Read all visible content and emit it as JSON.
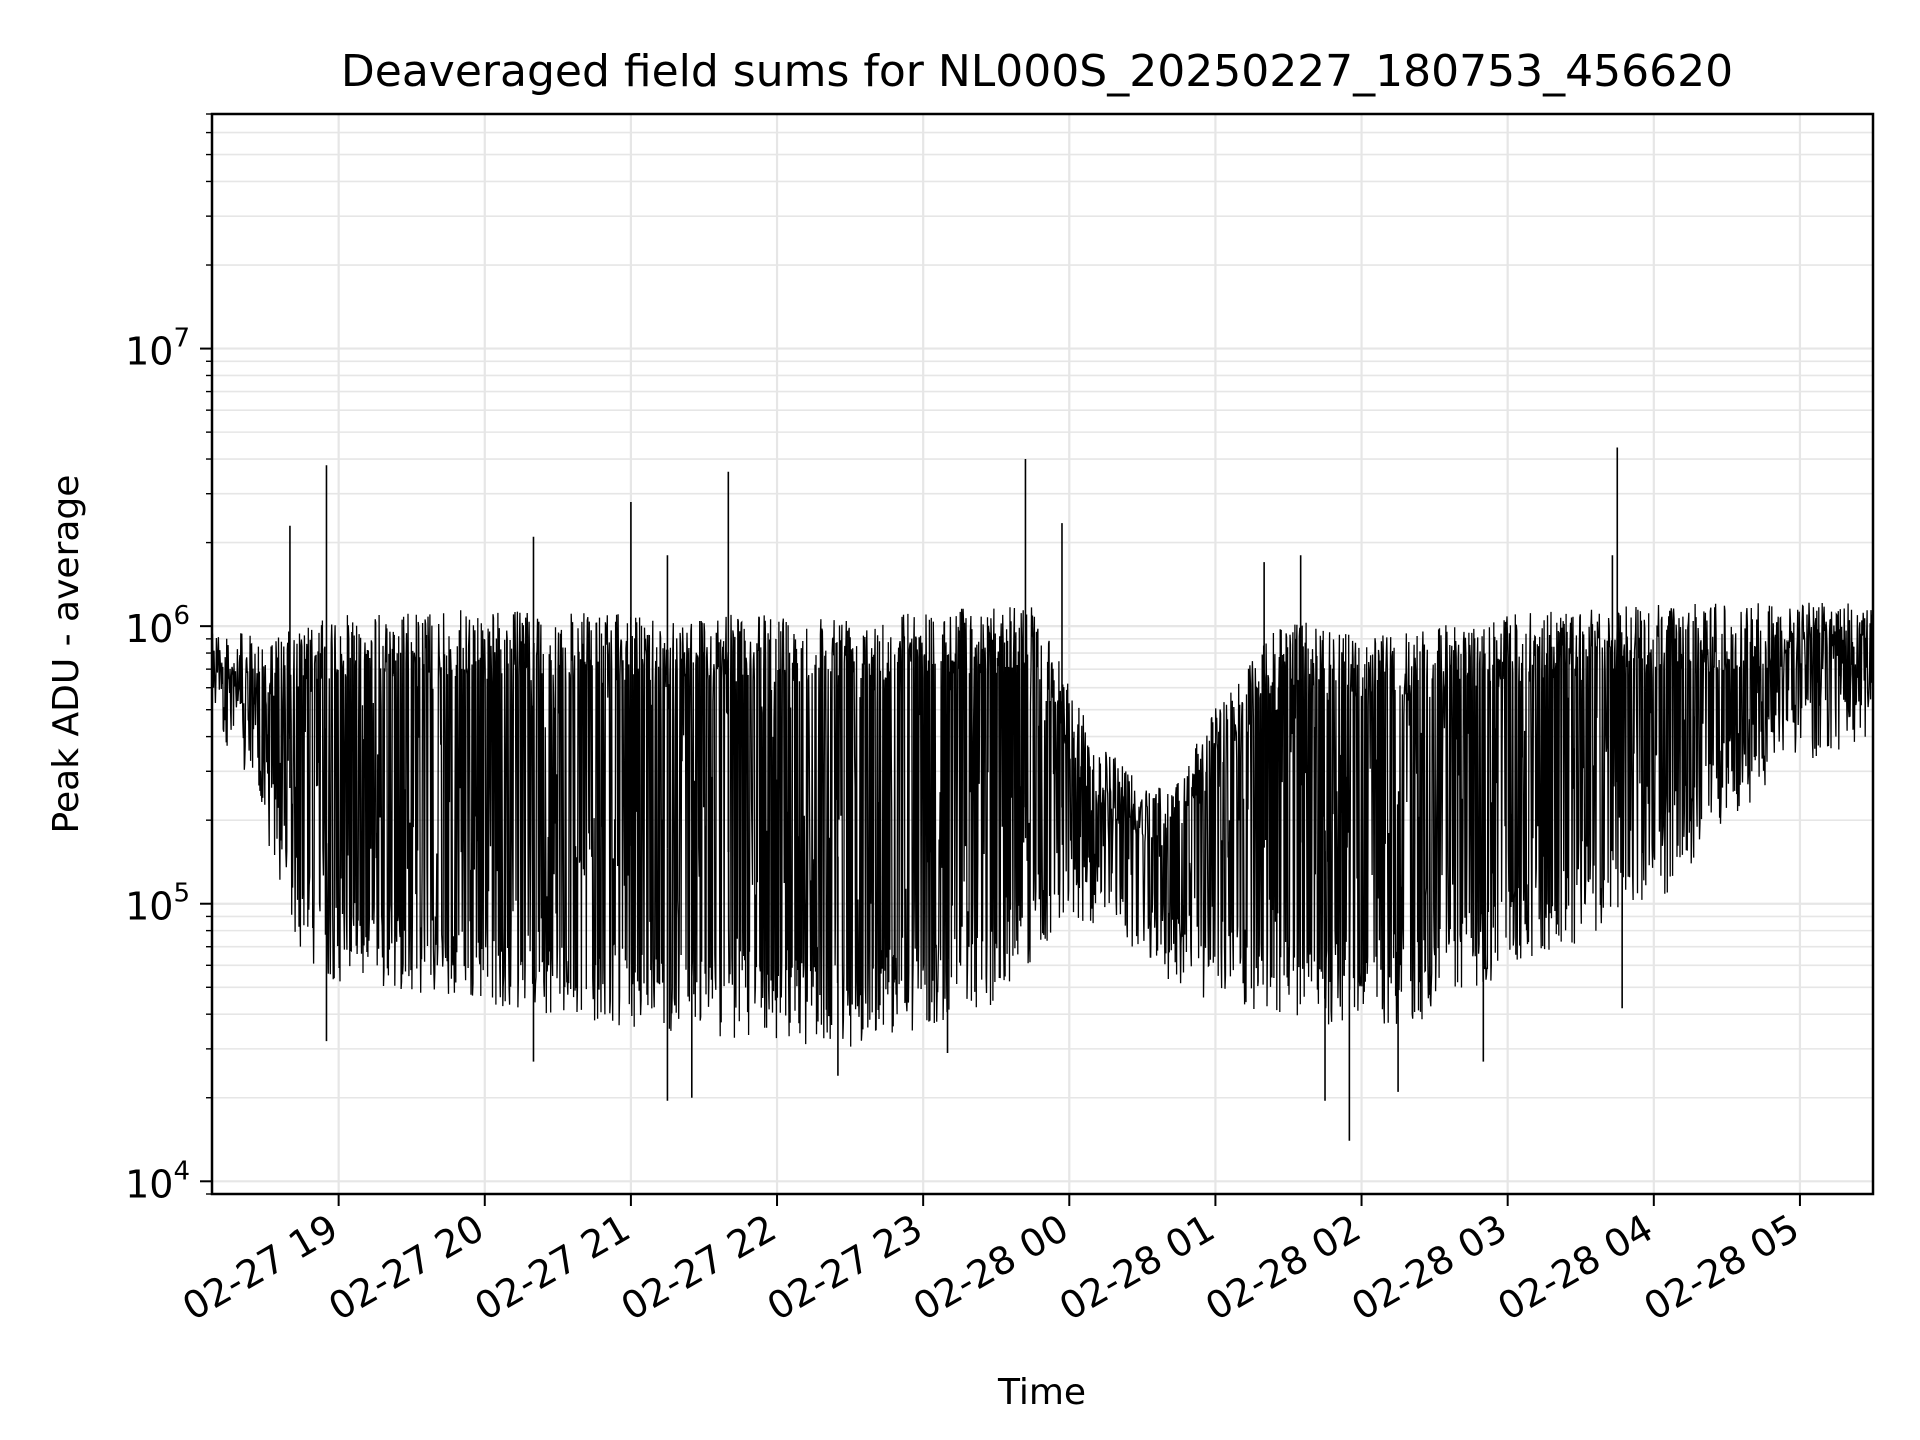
{
  "chart_data": {
    "type": "line",
    "title": "Deaveraged field sums for NL000S_20250227_180753_456620",
    "xlabel": "Time",
    "ylabel": "Peak ADU - average",
    "yscale": "log",
    "ylim": [
      9000,
      70000000
    ],
    "xlim": [
      "2025-02-27 18:08",
      "2025-02-28 05:30"
    ],
    "grid": true,
    "line_color": "#000000",
    "grid_color": "#e6e6e6",
    "x_ticks": [
      {
        "time": "2025-02-27 19:00",
        "label": "02-27 19"
      },
      {
        "time": "2025-02-27 20:00",
        "label": "02-27 20"
      },
      {
        "time": "2025-02-27 21:00",
        "label": "02-27 21"
      },
      {
        "time": "2025-02-27 22:00",
        "label": "02-27 22"
      },
      {
        "time": "2025-02-27 23:00",
        "label": "02-27 23"
      },
      {
        "time": "2025-02-28 00:00",
        "label": "02-28 00"
      },
      {
        "time": "2025-02-28 01:00",
        "label": "02-28 01"
      },
      {
        "time": "2025-02-28 02:00",
        "label": "02-28 02"
      },
      {
        "time": "2025-02-28 03:00",
        "label": "02-28 03"
      },
      {
        "time": "2025-02-28 04:00",
        "label": "02-28 04"
      },
      {
        "time": "2025-02-28 05:00",
        "label": "02-28 05"
      }
    ],
    "y_ticks": [
      {
        "value": 10000,
        "base": "10",
        "exp": "4"
      },
      {
        "value": 100000,
        "base": "10",
        "exp": "5"
      },
      {
        "value": 1000000,
        "base": "10",
        "exp": "6"
      },
      {
        "value": 10000000,
        "base": "10",
        "exp": "7"
      }
    ],
    "series": [
      {
        "baseline": [
          [
            "2025-02-27 18:08",
            600000
          ],
          [
            "2025-02-27 18:15",
            450000
          ],
          [
            "2025-02-27 18:25",
            300000
          ],
          [
            "2025-02-27 18:35",
            150000
          ],
          [
            "2025-02-27 18:45",
            80000
          ],
          [
            "2025-02-27 19:00",
            65000
          ],
          [
            "2025-02-27 19:30",
            60000
          ],
          [
            "2025-02-27 20:00",
            55000
          ],
          [
            "2025-02-27 20:30",
            50000
          ],
          [
            "2025-02-27 21:00",
            45000
          ],
          [
            "2025-02-27 21:30",
            42000
          ],
          [
            "2025-02-27 22:00",
            40000
          ],
          [
            "2025-02-27 22:30",
            38000
          ],
          [
            "2025-02-27 23:00",
            45000
          ],
          [
            "2025-02-27 23:30",
            55000
          ],
          [
            "2025-02-28 00:00",
            110000
          ],
          [
            "2025-02-28 00:20",
            100000
          ],
          [
            "2025-02-28 00:40",
            65000
          ],
          [
            "2025-02-28 01:00",
            55000
          ],
          [
            "2025-02-28 01:30",
            50000
          ],
          [
            "2025-02-28 02:00",
            40000
          ],
          [
            "2025-02-28 02:30",
            50000
          ],
          [
            "2025-02-28 03:00",
            70000
          ],
          [
            "2025-02-28 03:30",
            90000
          ],
          [
            "2025-02-28 04:00",
            120000
          ],
          [
            "2025-02-28 04:30",
            250000
          ],
          [
            "2025-02-28 05:00",
            400000
          ],
          [
            "2025-02-28 05:30",
            500000
          ]
        ],
        "top": [
          [
            "2025-02-27 18:08",
            1000000
          ],
          [
            "2025-02-27 18:30",
            900000
          ],
          [
            "2025-02-27 19:00",
            1100000
          ],
          [
            "2025-02-27 20:00",
            1150000
          ],
          [
            "2025-02-27 21:00",
            1100000
          ],
          [
            "2025-02-27 22:00",
            1100000
          ],
          [
            "2025-02-27 23:00",
            1150000
          ],
          [
            "2025-02-27 23:45",
            1200000
          ],
          [
            "2025-02-28 00:10",
            400000
          ],
          [
            "2025-02-28 00:40",
            250000
          ],
          [
            "2025-02-28 01:05",
            600000
          ],
          [
            "2025-02-28 01:30",
            1100000
          ],
          [
            "2025-02-28 02:00",
            900000
          ],
          [
            "2025-02-28 03:00",
            1100000
          ],
          [
            "2025-02-28 04:00",
            1200000
          ],
          [
            "2025-02-28 05:30",
            1250000
          ]
        ],
        "spikes": [
          [
            "2025-02-27 18:40",
            2300000
          ],
          [
            "2025-02-27 18:55",
            3800000
          ],
          [
            "2025-02-27 20:20",
            2100000
          ],
          [
            "2025-02-27 21:00",
            2800000
          ],
          [
            "2025-02-27 21:15",
            1800000
          ],
          [
            "2025-02-27 21:40",
            3600000
          ],
          [
            "2025-02-27 23:42",
            4000000
          ],
          [
            "2025-02-27 23:57",
            2350000
          ],
          [
            "2025-02-28 01:20",
            1700000
          ],
          [
            "2025-02-28 01:35",
            1800000
          ],
          [
            "2025-02-28 03:45",
            4400000
          ],
          [
            "2025-02-28 03:43",
            1800000
          ]
        ],
        "dips": [
          [
            "2025-02-27 18:55",
            32000
          ],
          [
            "2025-02-27 20:20",
            27000
          ],
          [
            "2025-02-27 21:15",
            19500
          ],
          [
            "2025-02-27 21:25",
            20000
          ],
          [
            "2025-02-27 22:25",
            24000
          ],
          [
            "2025-02-27 23:10",
            29000
          ],
          [
            "2025-02-28 01:45",
            19500
          ],
          [
            "2025-02-28 01:55",
            14000
          ],
          [
            "2025-02-28 02:15",
            21000
          ],
          [
            "2025-02-28 02:50",
            27000
          ],
          [
            "2025-02-28 03:47",
            42000
          ]
        ]
      }
    ]
  }
}
